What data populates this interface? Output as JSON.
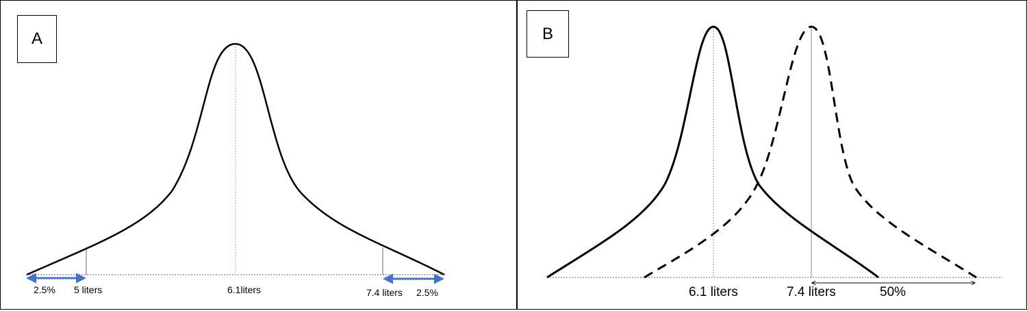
{
  "panels": {
    "a": {
      "tag": "A",
      "labels": {
        "left_tail": "2.5%",
        "lower_limit": "5 liters",
        "center": "6.1liters",
        "upper_limit": "7.4 liters",
        "right_tail": "2.5%"
      }
    },
    "b": {
      "tag": "B",
      "labels": {
        "solid_peak": "6.1 liters",
        "dashed_peak": "7.4 liters",
        "percent": "50%"
      }
    }
  },
  "colors": {
    "curve": "#000000",
    "arrow_blue": "#4472C4",
    "guide_grey": "#9a9a9a"
  }
}
